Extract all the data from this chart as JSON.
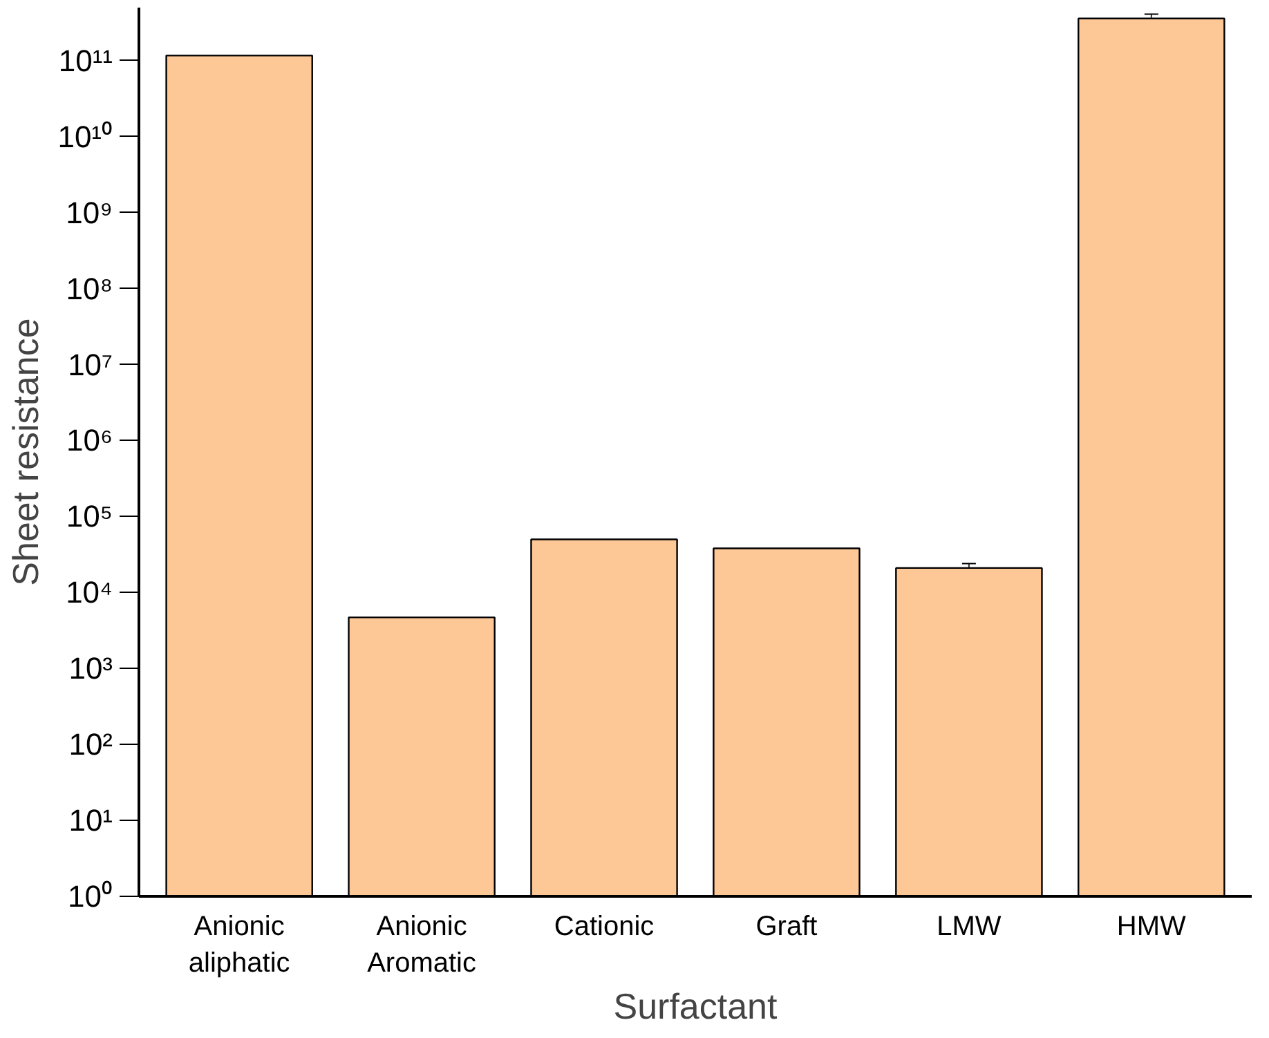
{
  "chart_data": {
    "type": "bar",
    "xlabel": "Surfactant",
    "ylabel": "Sheet resistance",
    "categories": [
      "Anionic aliphatic",
      "Anionic Aromatic",
      "Cationic",
      "Graft",
      "LMW",
      "HMW"
    ],
    "values": [
      117000000000.0,
      4700.0,
      50000.0,
      38000.0,
      21000.0,
      360000000000.0
    ],
    "errors": [
      null,
      null,
      null,
      null,
      [
        19000.0,
        24000.0
      ],
      [
        320000000000.0,
        410000000000.0
      ]
    ],
    "color": "#fec796",
    "log": true,
    "grid": false,
    "ylim": [
      1,
      500000000000.0
    ],
    "yticks": [
      {
        "value": 1,
        "label": "10⁰"
      },
      {
        "value": 10,
        "label": "10¹"
      },
      {
        "value": 100,
        "label": "10²"
      },
      {
        "value": 1000,
        "label": "10³"
      },
      {
        "value": 10000.0,
        "label": "10⁴"
      },
      {
        "value": 100000.0,
        "label": "10⁵"
      },
      {
        "value": 1000000.0,
        "label": "10⁶"
      },
      {
        "value": 10000000.0,
        "label": "10⁷"
      },
      {
        "value": 100000000.0,
        "label": "10⁸"
      },
      {
        "value": 1000000000.0,
        "label": "10⁹"
      },
      {
        "value": 10000000000.0,
        "label": "10¹⁰"
      },
      {
        "value": 100000000000.0,
        "label": "10¹¹"
      }
    ]
  }
}
